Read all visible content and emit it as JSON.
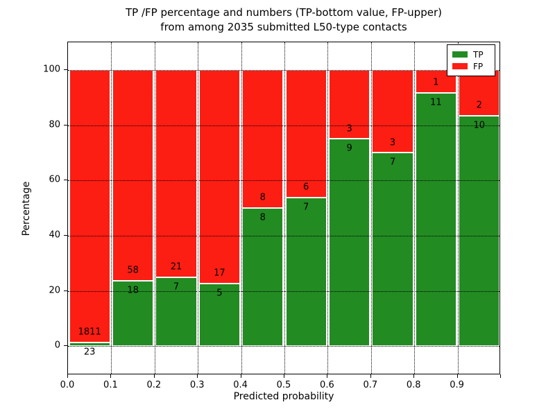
{
  "title": {
    "line1": "TP /FP percentage and numbers (TP-bottom value, FP-upper)",
    "line2": "from among 2035 submitted L50-type contacts"
  },
  "chart_data": {
    "type": "bar",
    "stacked": true,
    "normalized_to": 100,
    "title": "TP /FP percentage and numbers (TP-bottom value, FP-upper) from among 2035 submitted L50-type contacts",
    "xlabel": "Predicted probability",
    "ylabel": "Percentage",
    "total_contacts": 2035,
    "bins": [
      "0.0-0.1",
      "0.1-0.2",
      "0.2-0.3",
      "0.3-0.4",
      "0.4-0.5",
      "0.5-0.6",
      "0.6-0.7",
      "0.7-0.8",
      "0.8-0.9",
      "0.9-1.0"
    ],
    "series": [
      {
        "name": "TP",
        "color": "#228b22",
        "counts": [
          23,
          18,
          7,
          5,
          8,
          7,
          9,
          7,
          11,
          10
        ]
      },
      {
        "name": "FP",
        "color": "#fc1d13",
        "counts": [
          1811,
          58,
          21,
          17,
          8,
          6,
          3,
          3,
          1,
          2
        ]
      }
    ],
    "bar_labels_note": "FP count printed above TP/FP boundary, TP count below boundary",
    "x_ticks": [
      "0.0",
      "0.1",
      "0.2",
      "0.3",
      "0.4",
      "0.5",
      "0.6",
      "0.7",
      "0.8",
      "0.9"
    ],
    "y_ticks": [
      "0",
      "20",
      "40",
      "60",
      "80",
      "100"
    ],
    "xlim": [
      0.0,
      1.0
    ],
    "ylim": [
      0,
      100
    ],
    "grid": {
      "style": "dotted",
      "color": "#000000"
    },
    "legend": {
      "position": "upper right",
      "entries": [
        {
          "label": "TP",
          "color": "#228b22"
        },
        {
          "label": "FP",
          "color": "#fc1d13"
        }
      ]
    }
  }
}
